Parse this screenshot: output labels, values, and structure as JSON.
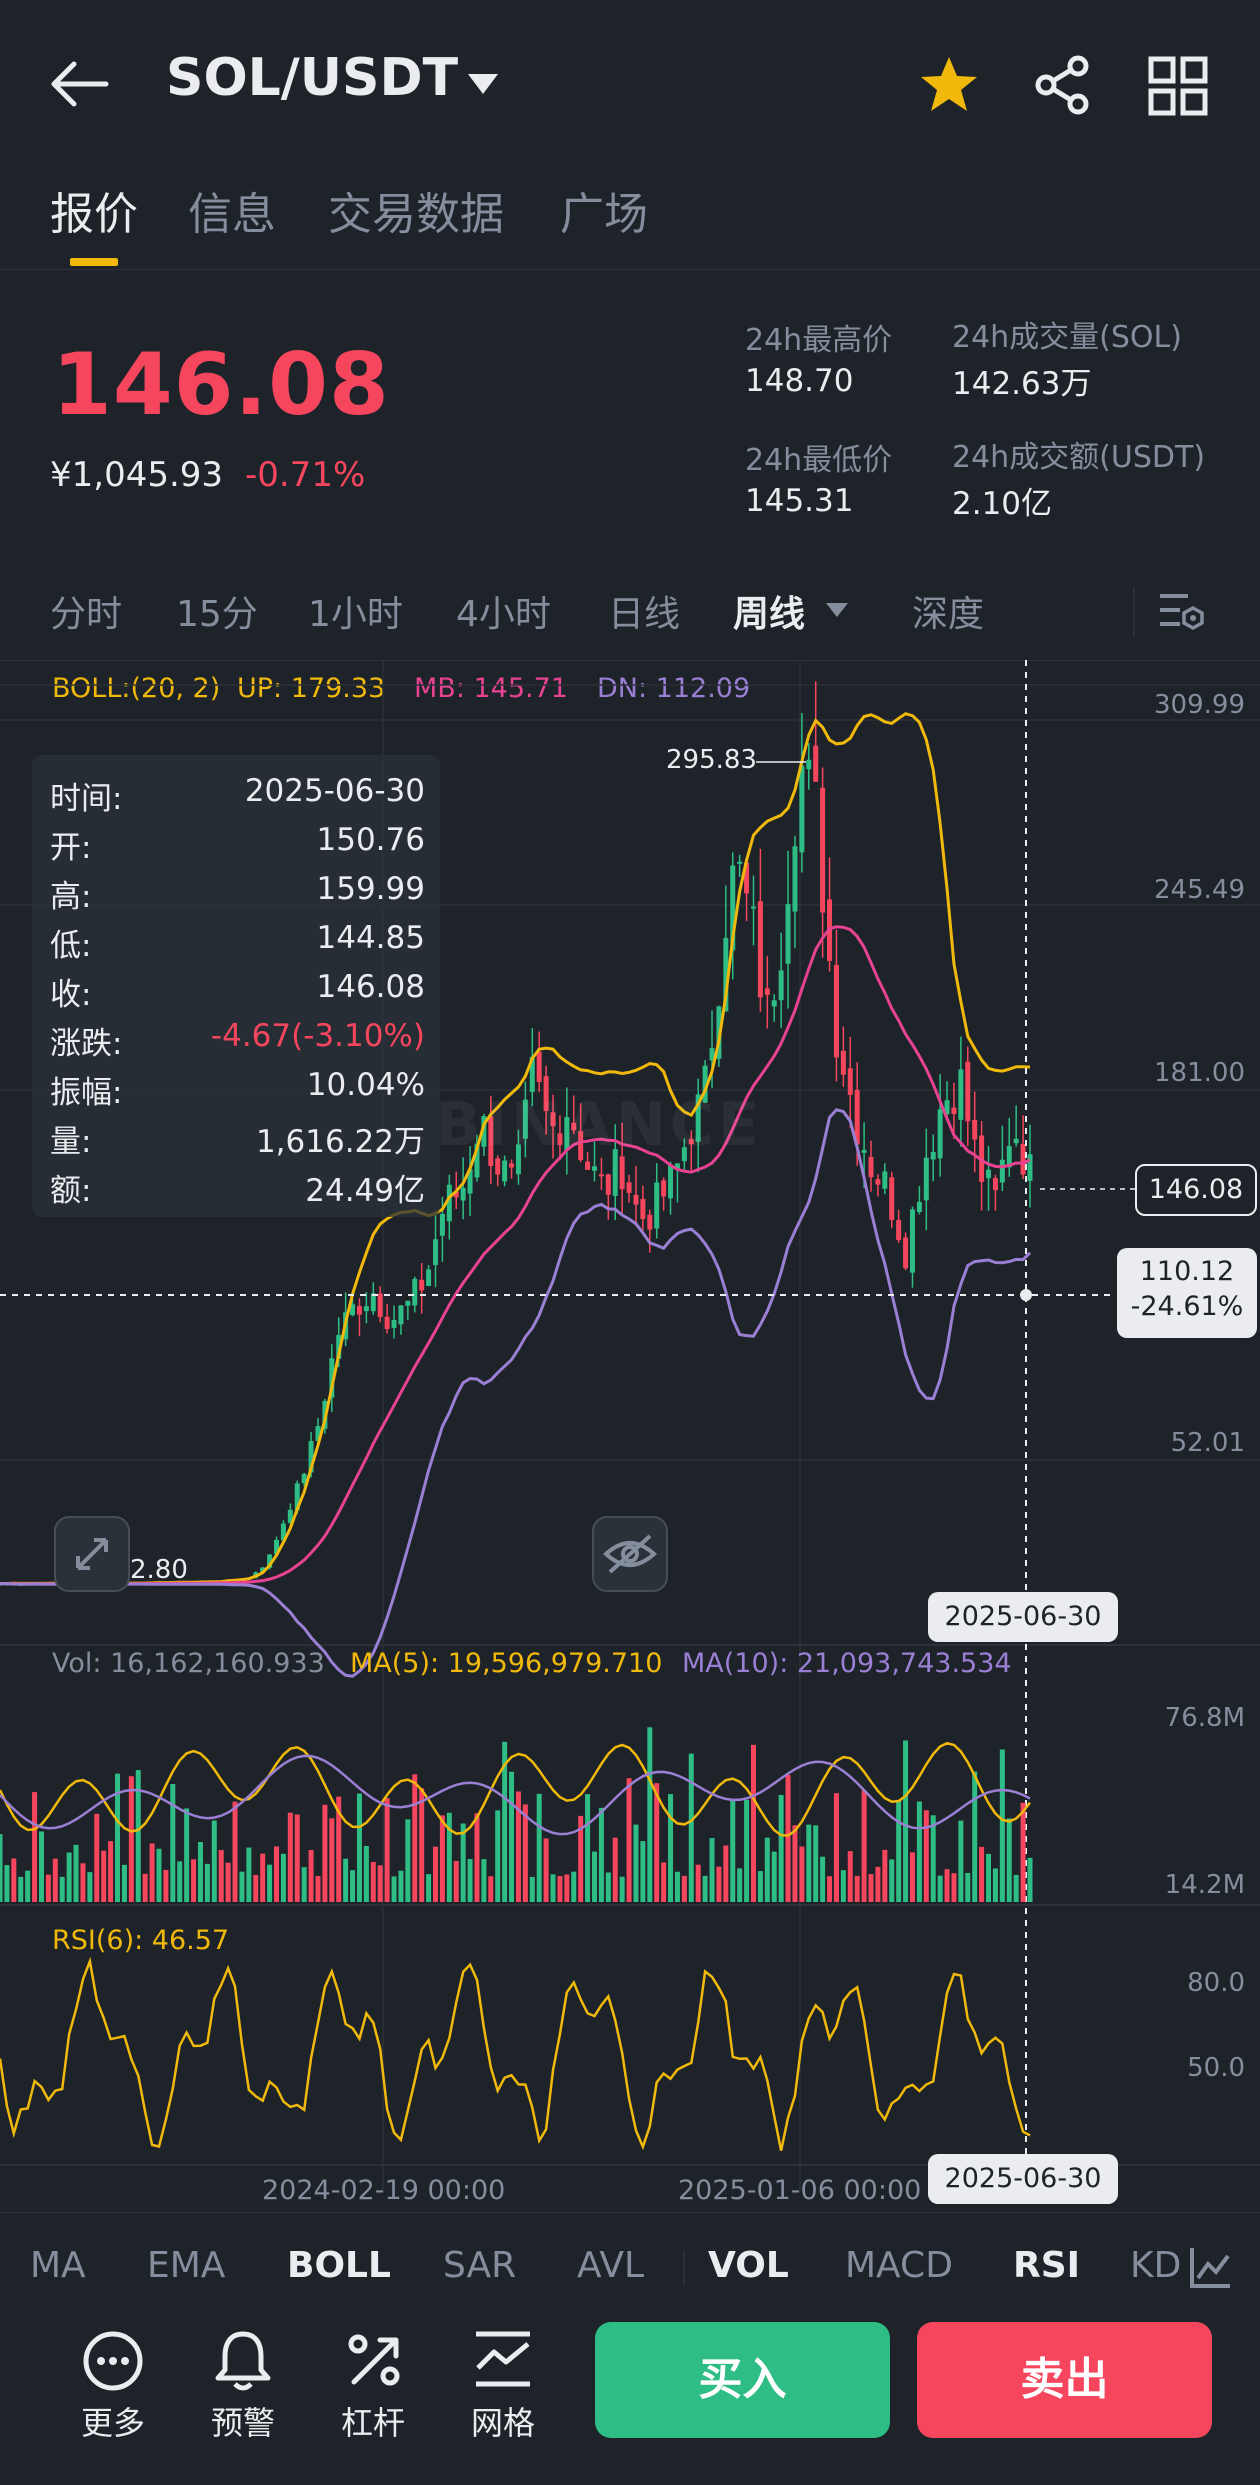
{
  "header": {
    "pair": "SOL/USDT"
  },
  "tabs": [
    "报价",
    "信息",
    "交易数据",
    "广场"
  ],
  "ticker": {
    "last_price": "146.08",
    "cny_price": "¥1,045.93",
    "change_pct": "-0.71%",
    "high_label": "24h最高价",
    "high_value": "148.70",
    "low_label": "24h最低价",
    "low_value": "145.31",
    "vol_sol_label": "24h成交量(SOL)",
    "vol_sol_value": "142.63万",
    "vol_usdt_label": "24h成交额(USDT)",
    "vol_usdt_value": "2.10亿"
  },
  "timeframes": [
    "分时",
    "15分",
    "1小时",
    "4小时",
    "日线",
    "周线",
    "深度"
  ],
  "active_timeframe": "周线",
  "boll_legend": {
    "name": "BOLL:(20, 2)",
    "up": "UP: 179.33",
    "mb": "MB: 145.71",
    "dn": "DN: 112.09"
  },
  "price_axis": [
    "309.99",
    "245.49",
    "181.00",
    "52.01"
  ],
  "chart_labels": {
    "peak": "295.83",
    "low": "2.80",
    "last_tag": "146.08",
    "cross_price": "110.12",
    "cross_pct": "-24.61%",
    "cross_date": "2025-06-30",
    "watermark": "BINANCE"
  },
  "tooltip": {
    "time_k": "时间:",
    "time_v": "2025-06-30",
    "open_k": "开:",
    "open_v": "150.76",
    "high_k": "高:",
    "high_v": "159.99",
    "low_k": "低:",
    "low_v": "144.85",
    "close_k": "收:",
    "close_v": "146.08",
    "chg_k": "涨跌:",
    "chg_v": "-4.67(-3.10%)",
    "amp_k": "振幅:",
    "amp_v": "10.04%",
    "vol_k": "量:",
    "vol_v": "1,616.22万",
    "amt_k": "额:",
    "amt_v": "24.49亿"
  },
  "volume": {
    "legend_vol": "Vol: 16,162,160.933",
    "legend_ma5": "MA(5): 19,596,979.710",
    "legend_ma10": "MA(10): 21,093,743.534",
    "axis_top": "76.8M",
    "axis_bottom": "14.2M"
  },
  "rsi": {
    "legend": "RSI(6): 46.57",
    "axis_80": "80.0",
    "axis_50": "50.0"
  },
  "x_axis": [
    "2024-02-19 00:00",
    "2025-01-06 00:00"
  ],
  "indicators": [
    "MA",
    "EMA",
    "BOLL",
    "SAR",
    "AVL",
    "VOL",
    "MACD",
    "RSI",
    "KD"
  ],
  "active_indicators": [
    "BOLL",
    "VOL",
    "RSI"
  ],
  "bottom_nav": {
    "more": "更多",
    "alert": "预警",
    "leverage": "杠杆",
    "grid": "网格"
  },
  "actions": {
    "buy": "买入",
    "sell": "卖出"
  },
  "colors": {
    "up": "#2ebd85",
    "down": "#f6465d",
    "accent": "#f0b90b",
    "boll_up": "#f0b90b",
    "boll_mb": "#e84393",
    "boll_dn": "#9b7fd4",
    "bg": "#1e2329"
  },
  "chart_data": {
    "type": "candlestick",
    "interval": "1w",
    "x_ticks": [
      "2024-02-19 00:00",
      "2025-01-06 00:00"
    ],
    "y_ticks": [
      309.99,
      245.49,
      181.0,
      52.01
    ],
    "visible_peak": 295.83,
    "visible_low": 2.8,
    "boll": {
      "up": 179.33,
      "mb": 145.71,
      "dn": 112.09
    },
    "last_candle": {
      "date": "2025-06-30",
      "open": 150.76,
      "high": 159.99,
      "low": 144.85,
      "close": 146.08
    },
    "volume_ticks": [
      "76.8M",
      "14.2M"
    ],
    "rsi6_last": 46.57,
    "rsi_ticks": [
      80.0,
      50.0
    ]
  }
}
